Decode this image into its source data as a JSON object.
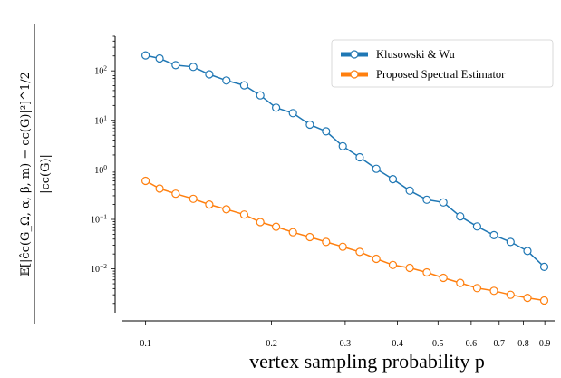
{
  "chart_data": {
    "type": "line",
    "xlabel": "vertex sampling probability p",
    "ylabel_numerator": "𝔼[|ĉc(G_Ω, α, β, m) − cc(G)|²]^1/2",
    "ylabel_denominator": "|cc(G)|",
    "x_scale": "log",
    "y_scale": "log",
    "xlim": [
      0.088,
      0.95
    ],
    "ylim": [
      0.0013,
      500
    ],
    "x_ticks": [
      0.1,
      0.2,
      0.3,
      0.4,
      0.5,
      0.6,
      0.7,
      0.8,
      0.9
    ],
    "x_tick_labels": [
      "0.1",
      "0.2",
      "0.3",
      "0.4",
      "0.5",
      "0.6",
      "0.7",
      "0.8",
      "0.9"
    ],
    "y_ticks": [
      100,
      10,
      1,
      0.1,
      0.01
    ],
    "y_tick_labels": [
      "10^2",
      "10^1",
      "10^0",
      "10^-1",
      "10^-2"
    ],
    "grid": false,
    "legend_position": "top-right",
    "x": [
      0.1,
      0.108,
      0.118,
      0.13,
      0.142,
      0.156,
      0.172,
      0.188,
      0.205,
      0.225,
      0.247,
      0.27,
      0.296,
      0.325,
      0.356,
      0.39,
      0.428,
      0.47,
      0.515,
      0.565,
      0.62,
      0.68,
      0.745,
      0.818,
      0.897
    ],
    "series": [
      {
        "name": "Klusowski & Wu",
        "color": "#1f77b4",
        "values": [
          205,
          178,
          130,
          120,
          85,
          64,
          51,
          32,
          18,
          14,
          8.2,
          6.0,
          3.0,
          1.8,
          1.05,
          0.65,
          0.38,
          0.25,
          0.22,
          0.115,
          0.072,
          0.048,
          0.035,
          0.023,
          0.011
        ]
      },
      {
        "name": "Proposed Spectral Estimator",
        "color": "#ff7f0e",
        "values": [
          0.6,
          0.42,
          0.33,
          0.26,
          0.2,
          0.16,
          0.125,
          0.088,
          0.071,
          0.055,
          0.044,
          0.035,
          0.028,
          0.022,
          0.016,
          0.012,
          0.0105,
          0.0085,
          0.0066,
          0.0052,
          0.0041,
          0.0036,
          0.003,
          0.0026,
          0.0023
        ]
      }
    ]
  }
}
